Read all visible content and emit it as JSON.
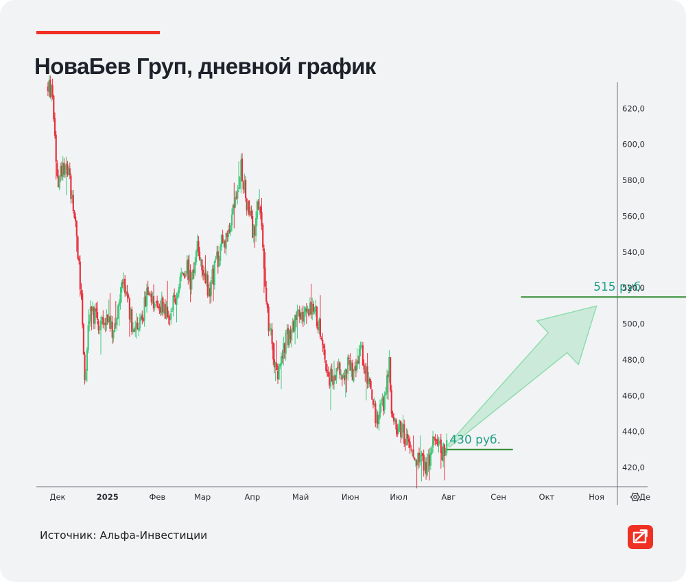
{
  "header": {
    "accent_color": "#ef3124",
    "title": "НоваБев Груп, дневной график"
  },
  "footer": {
    "source": "Источник: Альфа-Инвестиции",
    "logo_icon": "alfa-investments-logo-icon"
  },
  "chart_data": {
    "type": "candlestick",
    "title": "НоваБев Груп, дневной график",
    "ylim": [
      411,
      642
    ],
    "y_ticks": [
      "620,0",
      "600,0",
      "580,0",
      "560,0",
      "540,0",
      "520,0",
      "500,0",
      "480,0",
      "460,0",
      "440,0",
      "420,0"
    ],
    "x_ticks": [
      "Дек",
      "2025",
      "Фев",
      "Мар",
      "Апр",
      "Май",
      "Июн",
      "Июл",
      "Авг",
      "Сен",
      "Окт",
      "Ноя",
      "Де"
    ],
    "settings_icon": "gear-icon",
    "colors": {
      "up": "#3ec97b",
      "down": "#e8313e",
      "level": "#2e8b2e",
      "arrow": "#8fdcae",
      "label": "#1f9e86"
    },
    "price_path": [
      [
        "2024-11-25",
        632
      ],
      [
        "2024-11-28",
        628
      ],
      [
        "2024-12-01",
        575
      ],
      [
        "2024-12-04",
        590
      ],
      [
        "2024-12-07",
        587
      ],
      [
        "2024-12-10",
        572
      ],
      [
        "2024-12-13",
        548
      ],
      [
        "2024-12-16",
        512
      ],
      [
        "2024-12-18",
        466
      ],
      [
        "2024-12-21",
        508
      ],
      [
        "2024-12-25",
        503
      ],
      [
        "2024-12-29",
        500
      ],
      [
        "2025-01-04",
        498
      ],
      [
        "2025-01-07",
        508
      ],
      [
        "2025-01-11",
        525
      ],
      [
        "2025-01-14",
        512
      ],
      [
        "2025-01-17",
        494
      ],
      [
        "2025-01-21",
        497
      ],
      [
        "2025-01-25",
        516
      ],
      [
        "2025-02-01",
        505
      ],
      [
        "2025-02-04",
        513
      ],
      [
        "2025-02-08",
        503
      ],
      [
        "2025-02-12",
        516
      ],
      [
        "2025-02-15",
        525
      ],
      [
        "2025-02-19",
        533
      ],
      [
        "2025-02-22",
        521
      ],
      [
        "2025-02-26",
        545
      ],
      [
        "2025-03-02",
        528
      ],
      [
        "2025-03-05",
        518
      ],
      [
        "2025-03-09",
        531
      ],
      [
        "2025-03-12",
        542
      ],
      [
        "2025-03-16",
        550
      ],
      [
        "2025-03-19",
        560
      ],
      [
        "2025-03-22",
        568
      ],
      [
        "2025-03-25",
        586
      ],
      [
        "2025-03-27",
        575
      ],
      [
        "2025-03-30",
        560
      ],
      [
        "2025-04-02",
        549
      ],
      [
        "2025-04-04",
        568
      ],
      [
        "2025-04-06",
        570
      ],
      [
        "2025-04-08",
        540
      ],
      [
        "2025-04-10",
        506
      ],
      [
        "2025-04-13",
        490
      ],
      [
        "2025-04-16",
        472
      ],
      [
        "2025-04-20",
        485
      ],
      [
        "2025-04-25",
        497
      ],
      [
        "2025-04-29",
        505
      ],
      [
        "2025-05-03",
        503
      ],
      [
        "2025-05-07",
        508
      ],
      [
        "2025-05-11",
        505
      ],
      [
        "2025-05-15",
        486
      ],
      [
        "2025-05-19",
        470
      ],
      [
        "2025-05-23",
        473
      ],
      [
        "2025-05-27",
        472
      ],
      [
        "2025-05-31",
        478
      ],
      [
        "2025-06-04",
        472
      ],
      [
        "2025-06-08",
        485
      ],
      [
        "2025-06-11",
        475
      ],
      [
        "2025-06-14",
        462
      ],
      [
        "2025-06-17",
        446
      ],
      [
        "2025-06-20",
        455
      ],
      [
        "2025-06-23",
        457
      ],
      [
        "2025-06-25",
        484
      ],
      [
        "2025-06-27",
        448
      ],
      [
        "2025-06-30",
        442
      ],
      [
        "2025-07-04",
        440
      ],
      [
        "2025-07-08",
        430
      ],
      [
        "2025-07-12",
        426
      ],
      [
        "2025-07-16",
        423
      ],
      [
        "2025-07-19",
        420
      ],
      [
        "2025-07-23",
        434
      ],
      [
        "2025-07-27",
        429
      ],
      [
        "2025-07-31",
        430
      ]
    ],
    "annotations": [
      {
        "label": "430 руб.",
        "value": 430,
        "from": "2025-07-31",
        "to": "2025-09-10"
      },
      {
        "label": "515 руб.",
        "value": 515,
        "from": "2025-09-15",
        "to": "2026-01-15"
      }
    ],
    "arrow": {
      "from": [
        "2025-08-01",
        432
      ],
      "to": [
        "2025-11-01",
        510
      ]
    }
  }
}
